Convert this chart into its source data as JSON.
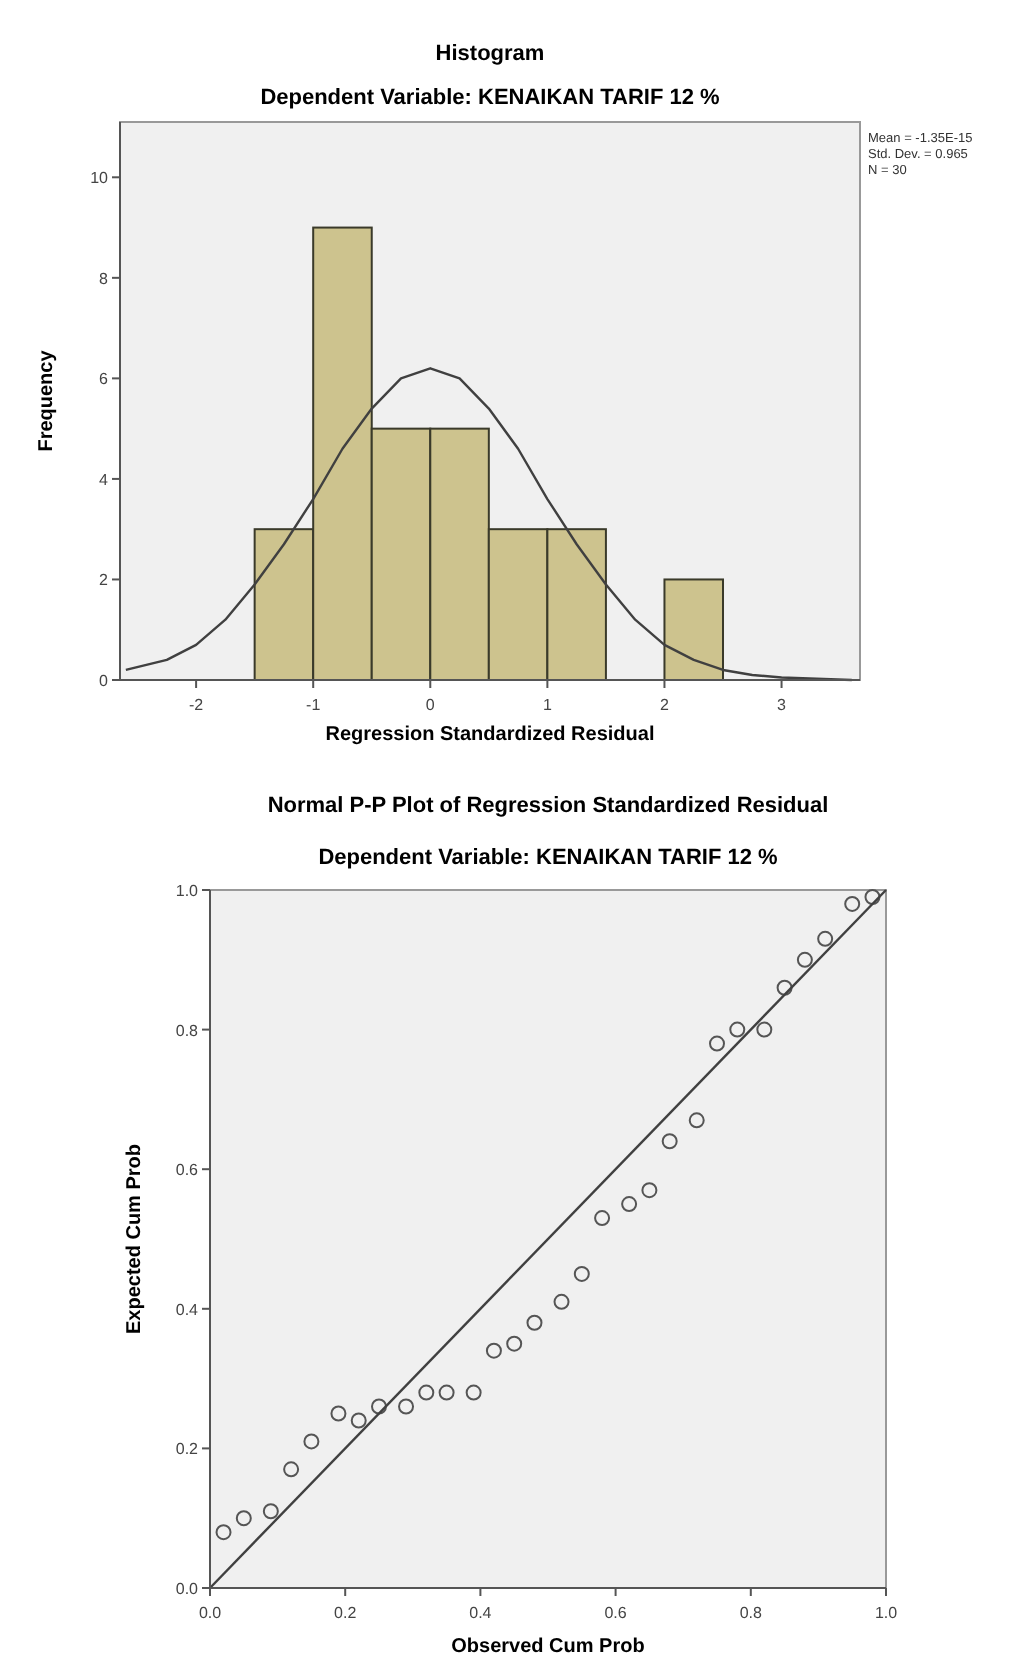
{
  "chart_data": [
    {
      "type": "histogram",
      "title": "Histogram",
      "subtitle": "Dependent Variable: KENAIKAN TARIF 12 %",
      "xlabel": "Regression Standardized Residual",
      "ylabel": "Frequency",
      "bins": [
        -1.5,
        -1,
        -0.5,
        0,
        0.5,
        1,
        1.5,
        2,
        2.5
      ],
      "values": [
        3,
        9,
        5,
        5,
        3,
        3,
        0,
        2
      ],
      "color": "#cdc38e",
      "series": [
        {
          "type": "line",
          "color": "#404040",
          "x": [
            -2.6,
            -2.25,
            -2,
            -1.75,
            -1.5,
            -1.25,
            -1,
            -0.75,
            -0.5,
            -0.25,
            0,
            0.25,
            0.5,
            0.75,
            1,
            1.25,
            1.5,
            1.75,
            2,
            2.25,
            2.5,
            2.75,
            3,
            3.6
          ],
          "values": [
            0.2,
            0.4,
            0.7,
            1.2,
            1.9,
            2.7,
            3.6,
            4.6,
            5.4,
            6,
            6.2,
            6,
            5.4,
            4.6,
            3.6,
            2.7,
            1.9,
            1.2,
            0.7,
            0.4,
            0.2,
            0.1,
            0.05,
            0
          ]
        }
      ],
      "xlim": [
        -2.65,
        3.67
      ],
      "xticks": [
        -2,
        -1,
        0,
        1,
        2,
        3
      ],
      "ylim": [
        0,
        11.1
      ],
      "yticks": [
        0,
        2,
        4,
        6,
        8,
        10
      ],
      "grid": false,
      "annotations": [
        "Mean = -1.35E-15",
        "Std. Dev. = 0.965",
        "N = 30"
      ]
    },
    {
      "type": "scatter",
      "title": "Normal P-P Plot of Regression Standardized Residual",
      "subtitle": "Dependent Variable: KENAIKAN TARIF 12 %",
      "xlabel": "Observed Cum Prob",
      "ylabel": "Expected Cum Prob",
      "grid": false,
      "series": [
        {
          "type": "scatter",
          "color": "#555555",
          "marker": "circle",
          "x": [
            0.02,
            0.05,
            0.09,
            0.12,
            0.15,
            0.19,
            0.22,
            0.25,
            0.29,
            0.32,
            0.35,
            0.39,
            0.42,
            0.45,
            0.48,
            0.52,
            0.55,
            0.58,
            0.62,
            0.65,
            0.68,
            0.72,
            0.75,
            0.78,
            0.82,
            0.85,
            0.88,
            0.91,
            0.95,
            0.98
          ],
          "values": [
            0.08,
            0.1,
            0.11,
            0.17,
            0.21,
            0.25,
            0.24,
            0.26,
            0.26,
            0.28,
            0.28,
            0.28,
            0.34,
            0.35,
            0.38,
            0.41,
            0.45,
            0.53,
            0.55,
            0.57,
            0.64,
            0.67,
            0.78,
            0.8,
            0.8,
            0.86,
            0.9,
            0.93,
            0.98,
            0.99
          ]
        },
        {
          "type": "line",
          "color": "#404040",
          "x": [
            0,
            1
          ],
          "values": [
            0,
            1
          ]
        }
      ],
      "xlim": [
        0,
        1
      ],
      "xticks": [
        {
          "value": 0,
          "label": "0.0"
        },
        {
          "value": 0.2,
          "label": "0.2"
        },
        {
          "value": 0.4,
          "label": "0.4"
        },
        {
          "value": 0.6,
          "label": "0.6"
        },
        {
          "value": 0.8,
          "label": "0.8"
        },
        {
          "value": 1,
          "label": "1.0"
        }
      ],
      "ylim": [
        0,
        1
      ],
      "yticks": [
        {
          "value": 0,
          "label": "0.0"
        },
        {
          "value": 0.2,
          "label": "0.2"
        },
        {
          "value": 0.4,
          "label": "0.4"
        },
        {
          "value": 0.6,
          "label": "0.6"
        },
        {
          "value": 0.8,
          "label": "0.8"
        },
        {
          "value": 1,
          "label": "1.0"
        }
      ]
    }
  ]
}
